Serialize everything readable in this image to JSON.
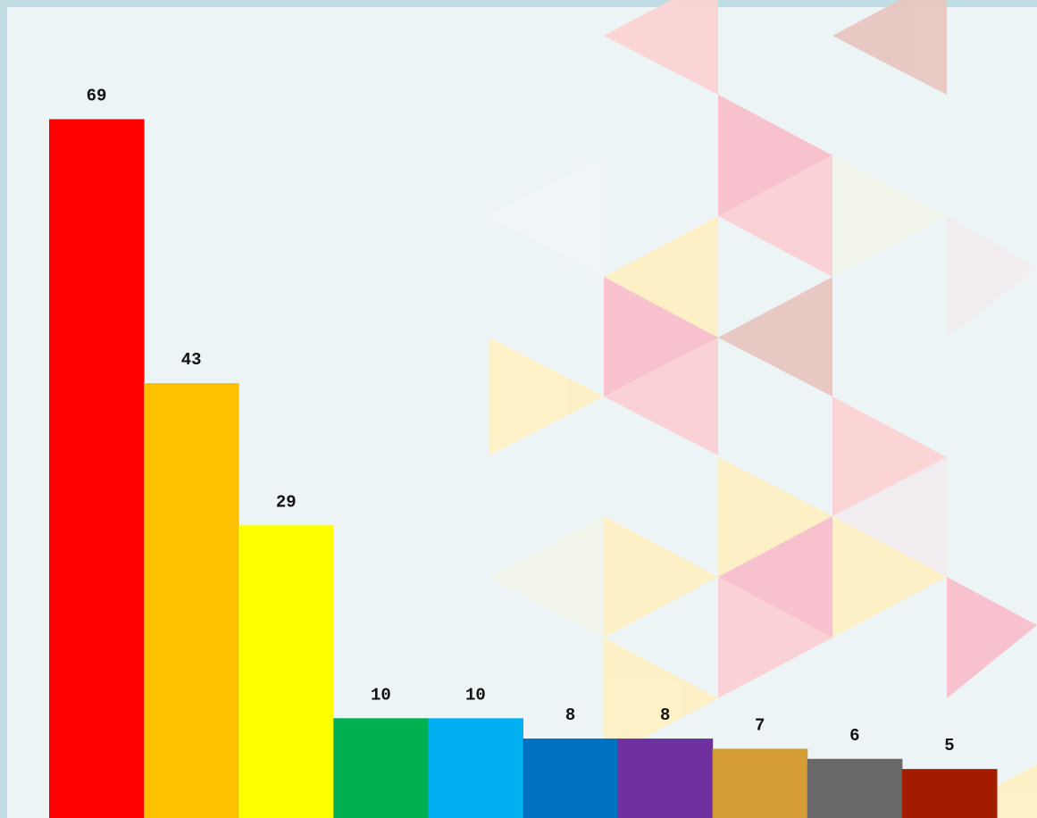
{
  "chart_data": {
    "type": "bar",
    "categories": [
      null,
      null,
      null,
      null,
      null,
      null,
      null,
      null,
      null,
      null
    ],
    "values": [
      69,
      43,
      29,
      10,
      10,
      8,
      8,
      7,
      6,
      5
    ],
    "colors": [
      "#ff0000",
      "#ffc000",
      "#ffff00",
      "#00b050",
      "#00b0f0",
      "#0070c0",
      "#7030a0",
      "#d69d36",
      "#696969",
      "#a31c00"
    ]
  }
}
